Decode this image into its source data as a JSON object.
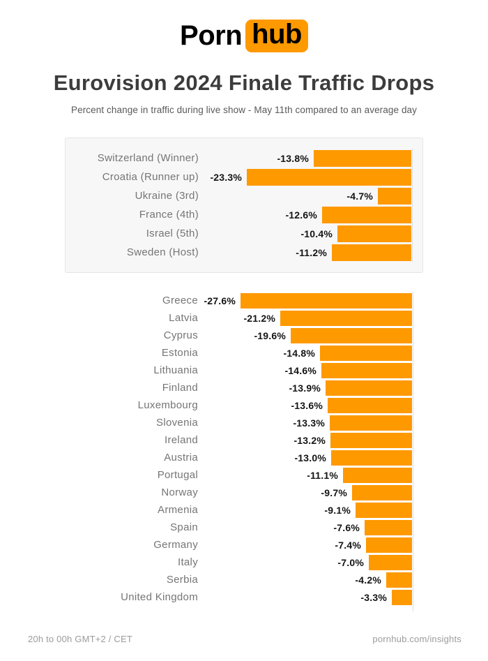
{
  "logo": {
    "part1": "Porn",
    "part2": "hub"
  },
  "title": "Eurovision 2024 Finale Traffic Drops",
  "subtitle": "Percent change in traffic during live show - May 11th compared to an average day",
  "footer": {
    "left": "20h to 00h GMT+2 / CET",
    "right": "pornhub.com/insights"
  },
  "colors": {
    "accent_orange": "#FF9900",
    "title_gray": "#3c3c3c",
    "label_gray": "#757575",
    "value_black": "#141414",
    "box_bg": "#f7f7f7",
    "box_border": "#e5e5e5",
    "axis_line": "#dddddd",
    "footer_gray": "#9b9b9b"
  },
  "chart_data": [
    {
      "type": "bar",
      "group": "finalists",
      "orientation": "horizontal-right-aligned",
      "legend_position": "none",
      "grid": false,
      "categories": [
        "Switzerland (Winner)",
        "Croatia (Runner up)",
        "Ukraine (3rd)",
        "France (4th)",
        "Israel (5th)",
        "Sweden (Host)"
      ],
      "values": [
        -13.8,
        -23.3,
        -4.7,
        -12.6,
        -10.4,
        -11.2
      ],
      "labels": [
        "-13.8%",
        "-23.3%",
        "-4.7%",
        "-12.6%",
        "-10.4%",
        "-11.2%"
      ],
      "xlabel": "",
      "ylabel": "",
      "xlim": [
        -28,
        0
      ]
    },
    {
      "type": "bar",
      "group": "other-countries",
      "orientation": "horizontal-right-aligned",
      "legend_position": "none",
      "grid": false,
      "categories": [
        "Greece",
        "Latvia",
        "Cyprus",
        "Estonia",
        "Lithuania",
        "Finland",
        "Luxembourg",
        "Slovenia",
        "Ireland",
        "Austria",
        "Portugal",
        "Norway",
        "Armenia",
        "Spain",
        "Germany",
        "Italy",
        "Serbia",
        "United Kingdom"
      ],
      "values": [
        -27.6,
        -21.2,
        -19.6,
        -14.8,
        -14.6,
        -13.9,
        -13.6,
        -13.3,
        -13.2,
        -13.0,
        -11.1,
        -9.7,
        -9.1,
        -7.6,
        -7.4,
        -7.0,
        -4.2,
        -3.3
      ],
      "labels": [
        "-27.6%",
        "-21.2%",
        "-19.6%",
        "-14.8%",
        "-14.6%",
        "-13.9%",
        "-13.6%",
        "-13.3%",
        "-13.2%",
        "-13.0%",
        "-11.1%",
        "-9.7%",
        "-9.1%",
        "-7.6%",
        "-7.4%",
        "-7.0%",
        "-4.2%",
        "-3.3%"
      ],
      "xlabel": "",
      "ylabel": "",
      "xlim": [
        -28,
        0
      ]
    }
  ]
}
